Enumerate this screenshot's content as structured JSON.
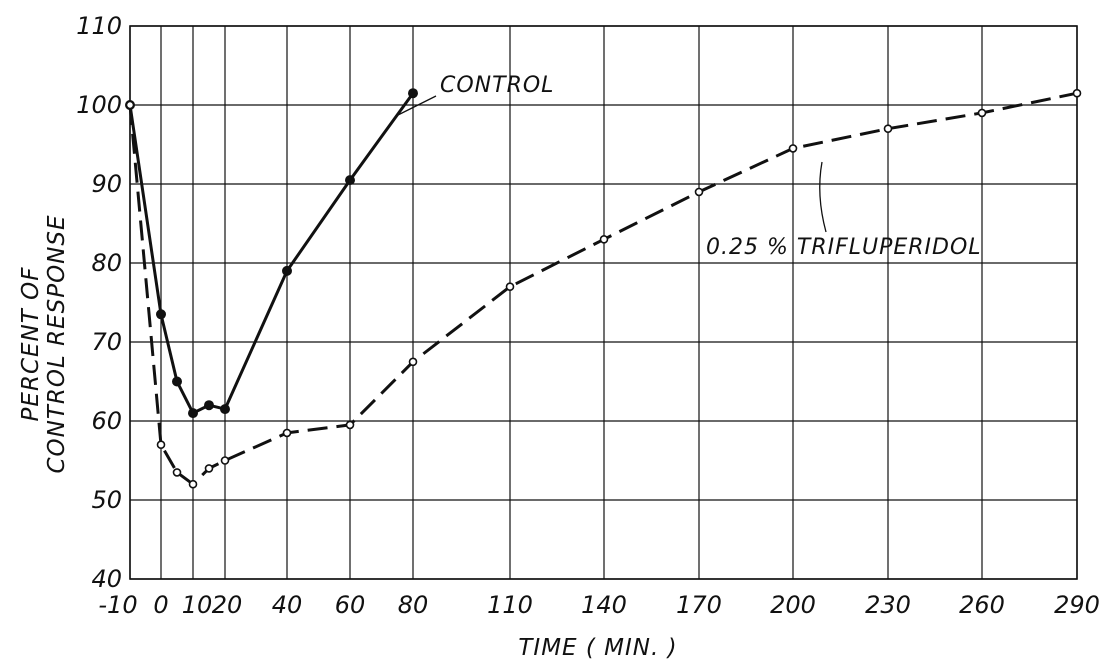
{
  "chart_data": {
    "type": "line",
    "title": "",
    "xlabel": "TIME ( MIN. )",
    "ylabel_lines": [
      "PERCENT OF",
      "CONTROL RESPONSE"
    ],
    "ylim": [
      40,
      110
    ],
    "yticks": [
      40,
      50,
      60,
      70,
      80,
      90,
      100,
      110
    ],
    "xticks": [
      "-10",
      "0",
      "10",
      "20",
      "40",
      "60",
      "80",
      "110",
      "140",
      "170",
      "200",
      "230",
      "260",
      "290"
    ],
    "grid": true,
    "series": [
      {
        "name": "CONTROL",
        "style": "solid",
        "marker": "filled-circle",
        "color": "#111111",
        "points": [
          [
            -10,
            100
          ],
          [
            0,
            73.5
          ],
          [
            5,
            65
          ],
          [
            10,
            61
          ],
          [
            15,
            62
          ],
          [
            20,
            61.5
          ],
          [
            40,
            79
          ],
          [
            60,
            90.5
          ],
          [
            80,
            101.5
          ]
        ]
      },
      {
        "name": "0.25 % TRIFLUPERIDOL",
        "style": "dashed",
        "marker": "open-circle",
        "color": "#111111",
        "points": [
          [
            -10,
            100
          ],
          [
            0,
            57
          ],
          [
            5,
            53.5
          ],
          [
            10,
            52
          ],
          [
            15,
            54
          ],
          [
            20,
            55
          ],
          [
            40,
            58.5
          ],
          [
            60,
            59.5
          ],
          [
            80,
            67.5
          ],
          [
            110,
            77
          ],
          [
            140,
            83
          ],
          [
            170,
            89
          ],
          [
            200,
            94.5
          ],
          [
            230,
            97
          ],
          [
            260,
            99
          ],
          [
            290,
            101.5
          ]
        ]
      }
    ]
  }
}
